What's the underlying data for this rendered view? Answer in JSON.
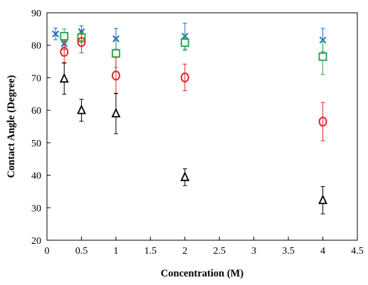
{
  "chart_data": {
    "type": "scatter",
    "xlabel": "Concentration (M)",
    "ylabel": "Contact Angle (Degree)",
    "xlim": [
      0,
      4.5
    ],
    "ylim": [
      20,
      90
    ],
    "x_ticks": [
      "0",
      "0.5",
      "1",
      "1.5",
      "2",
      "2.5",
      "3",
      "3.5",
      "4",
      "4.5"
    ],
    "y_ticks": [
      "20",
      "30",
      "40",
      "50",
      "60",
      "70",
      "80",
      "90"
    ],
    "grid": false,
    "legend": "none",
    "series": [
      {
        "marker": "x",
        "color": "#1f6fc1",
        "points": [
          {
            "x": 0.125,
            "y": 83.5,
            "err": 1.8
          },
          {
            "x": 0.25,
            "y": 80.5,
            "err": 1.8
          },
          {
            "x": 0.5,
            "y": 84.2,
            "err": 1.8
          },
          {
            "x": 1,
            "y": 82,
            "err": 3.2
          },
          {
            "x": 2,
            "y": 82.8,
            "err": 4.0
          },
          {
            "x": 4,
            "y": 81.6,
            "err": 3.6
          }
        ]
      },
      {
        "marker": "square",
        "color": "#2eaa4f",
        "points": [
          {
            "x": 0.25,
            "y": 82.8,
            "err": 2.2
          },
          {
            "x": 0.5,
            "y": 82.4,
            "err": 1.5
          },
          {
            "x": 1,
            "y": 77.5,
            "err": 4.3
          },
          {
            "x": 2,
            "y": 80.8,
            "err": 2.4
          },
          {
            "x": 4,
            "y": 76.5,
            "err": 5.5
          }
        ]
      },
      {
        "marker": "circle",
        "color": "#e02828",
        "points": [
          {
            "x": 0.25,
            "y": 78,
            "err": 3.3
          },
          {
            "x": 0.5,
            "y": 81,
            "err": 3.3
          },
          {
            "x": 1,
            "y": 70.7,
            "err": 5.6
          },
          {
            "x": 2,
            "y": 70.1,
            "err": 4.1
          },
          {
            "x": 4,
            "y": 56.5,
            "err": 5.9
          }
        ]
      },
      {
        "marker": "triangle",
        "color": "#000000",
        "points": [
          {
            "x": 0.25,
            "y": 69.7,
            "err": 4.8
          },
          {
            "x": 0.5,
            "y": 60,
            "err": 3.4
          },
          {
            "x": 1,
            "y": 59,
            "err": 6.2
          },
          {
            "x": 2,
            "y": 39.4,
            "err": 2.6
          },
          {
            "x": 4,
            "y": 32.3,
            "err": 4.2
          }
        ]
      }
    ]
  }
}
